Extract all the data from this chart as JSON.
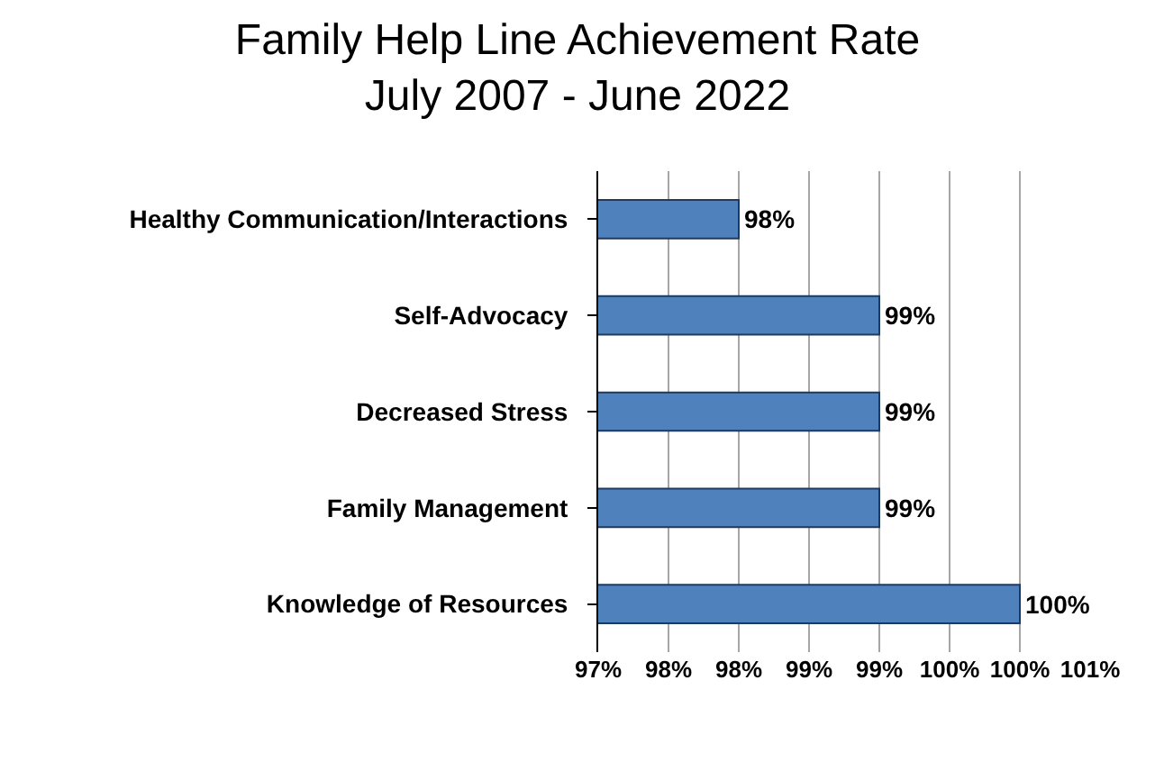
{
  "chart_data": {
    "type": "bar",
    "orientation": "horizontal",
    "title": "Family Help Line Achievement Rate",
    "subtitle": "July 2007 - June 2022",
    "categories": [
      "Healthy Communication/Interactions",
      "Self-Advocacy",
      "Decreased Stress",
      "Family Management",
      "Knowledge of Resources"
    ],
    "values": [
      98,
      99,
      99,
      99,
      100
    ],
    "value_labels": [
      "98%",
      "99%",
      "99%",
      "99%",
      "100%"
    ],
    "color": "#4f81bd",
    "xlim": [
      97,
      100.5
    ],
    "xticks": [
      {
        "value": 97,
        "label": "97%"
      },
      {
        "value": 97.5,
        "label": "98%"
      },
      {
        "value": 98,
        "label": "98%"
      },
      {
        "value": 98.5,
        "label": "99%"
      },
      {
        "value": 99,
        "label": "99%"
      },
      {
        "value": 99.5,
        "label": "100%"
      },
      {
        "value": 100,
        "label": "100%"
      },
      {
        "value": 100.5,
        "label": "101%"
      }
    ],
    "grid": "x"
  }
}
